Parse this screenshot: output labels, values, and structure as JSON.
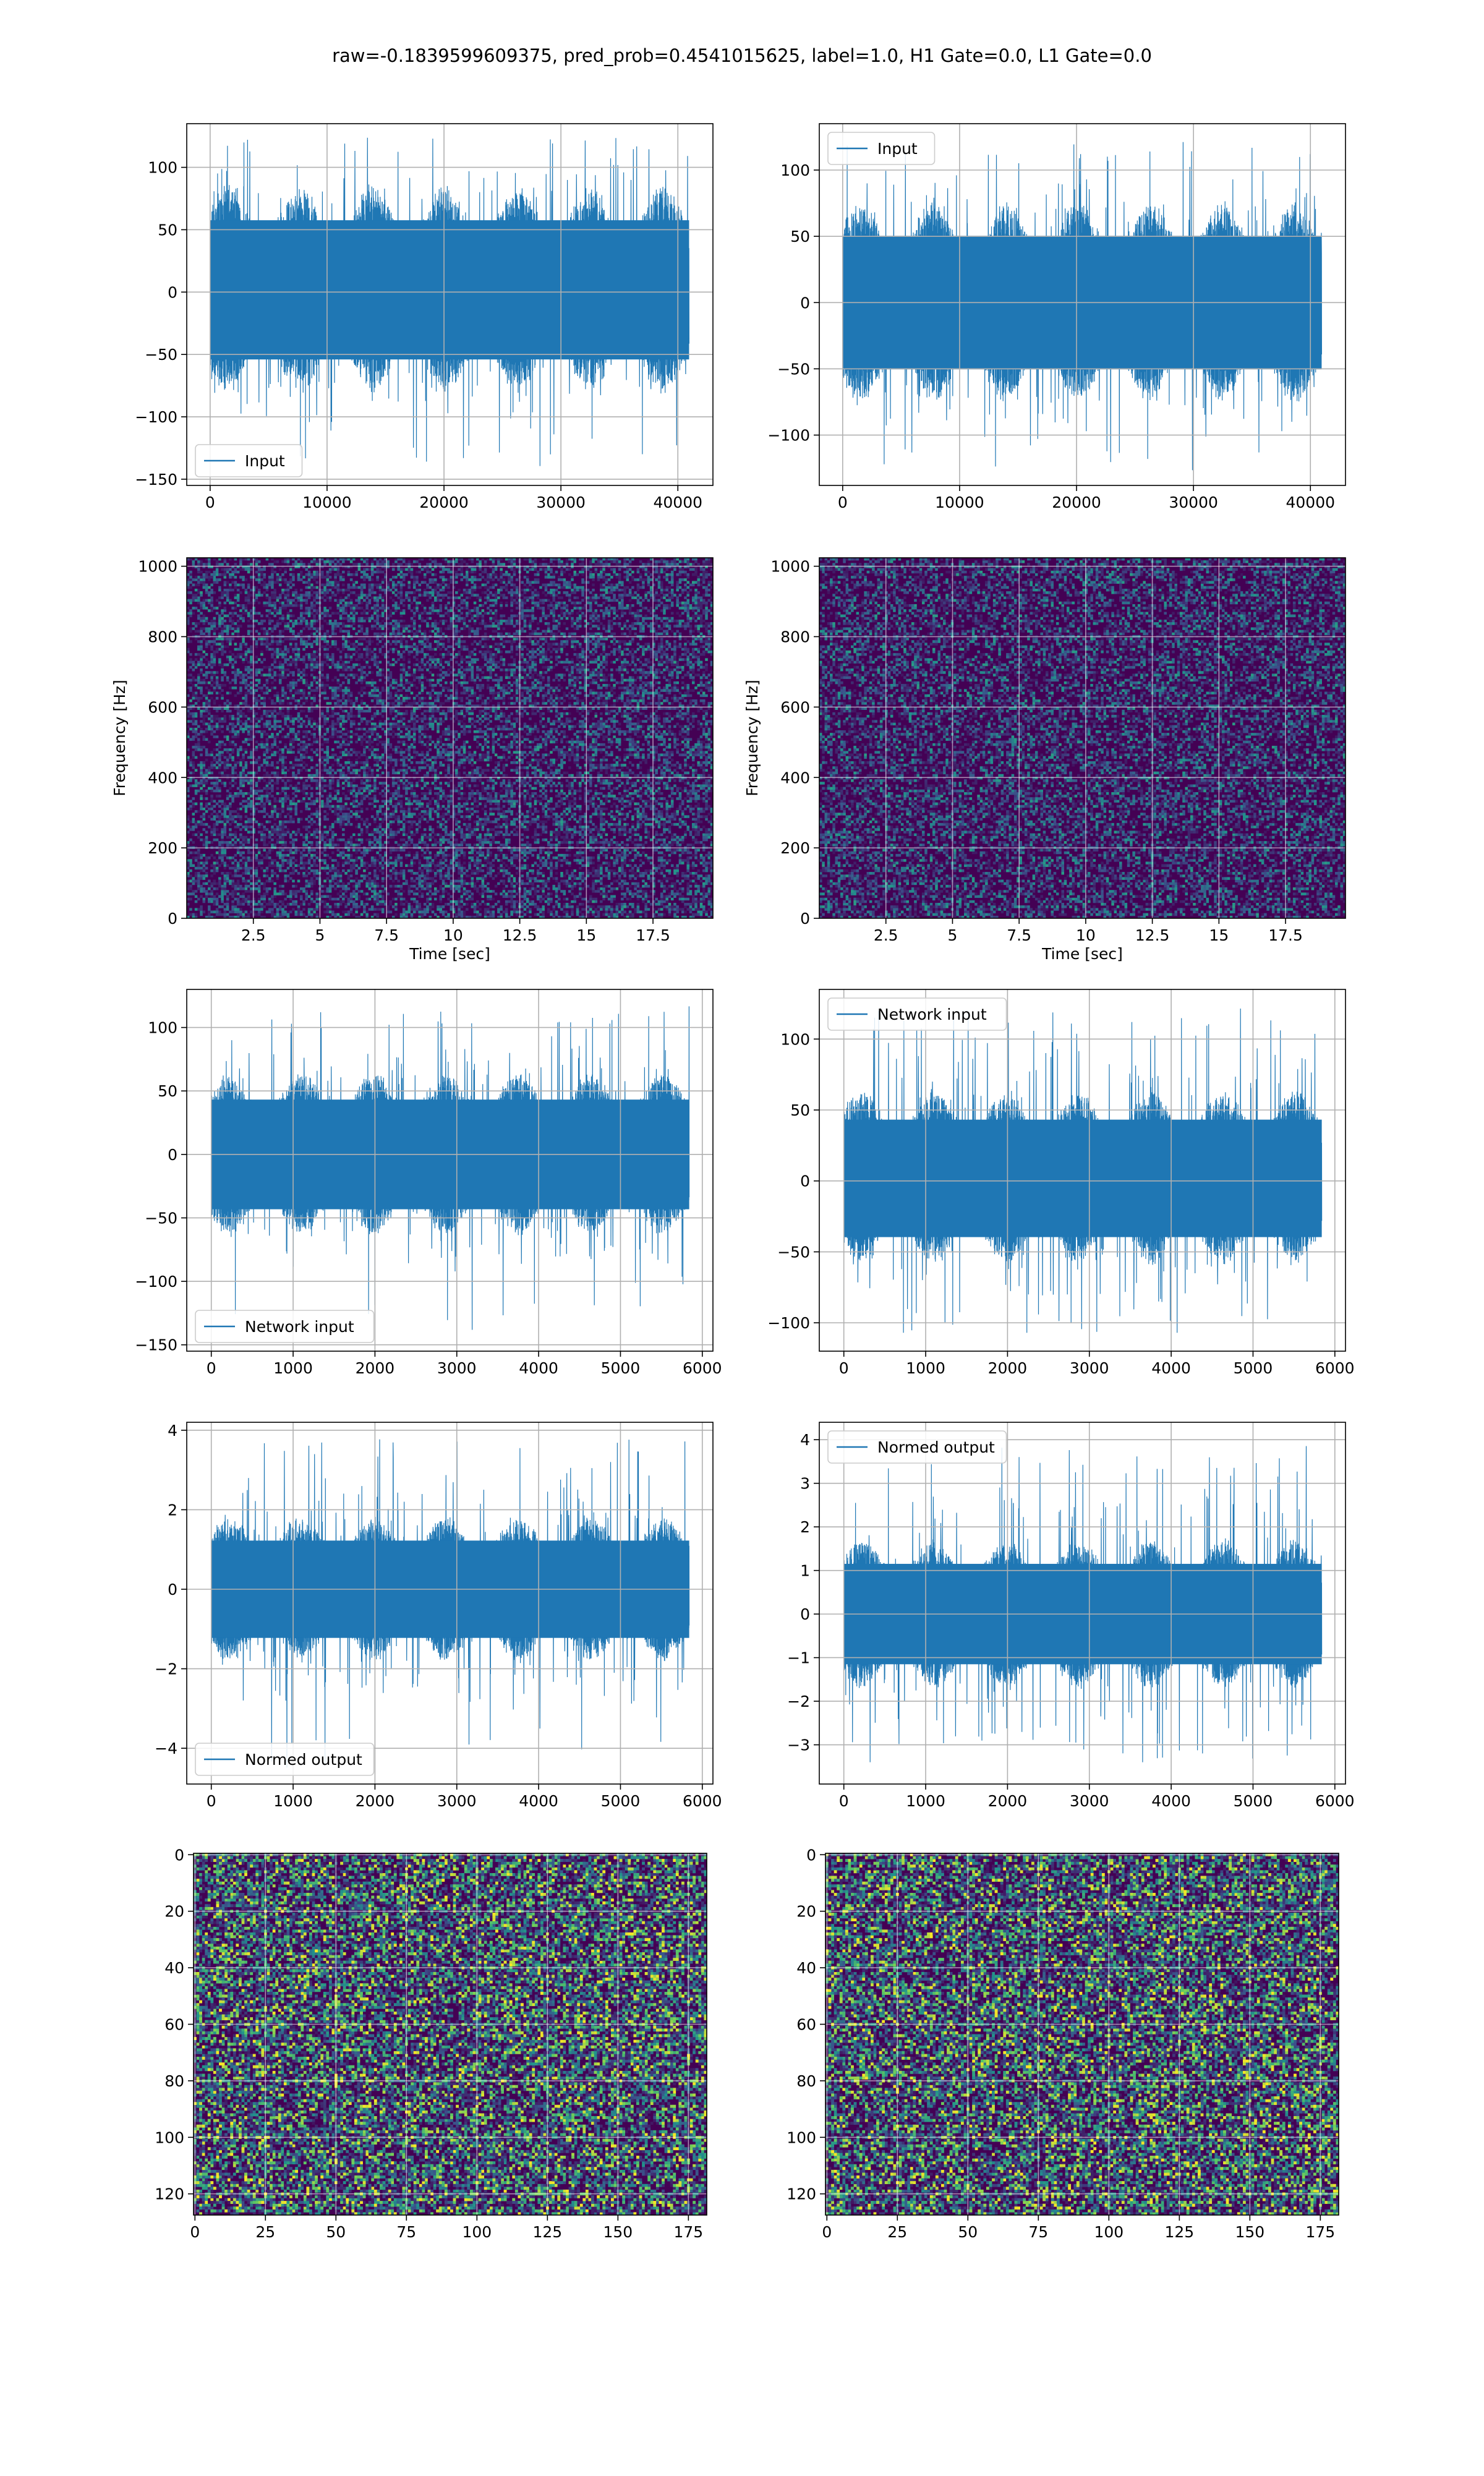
{
  "suptitle": "raw=-0.1839599609375, pred_prob=0.4541015625, label=1.0, H1 Gate=0.0, L1 Gate=0.0",
  "colors": {
    "line": "#1f77b4",
    "grid": "#b0b0b0",
    "viridis_dark": "#440154",
    "viridis_blue": "#31688e",
    "viridis_teal": "#21918c",
    "viridis_green": "#5ec962",
    "viridis_yellow": "#fde725"
  },
  "chart_data": [
    {
      "id": "p1",
      "type": "line",
      "legend": "Input",
      "legend_loc": "lower-left",
      "xlim": [
        -2000,
        43000
      ],
      "ylim": [
        -155,
        135
      ],
      "xticks": [
        0,
        10000,
        20000,
        30000,
        40000
      ],
      "yticks": [
        -150,
        -100,
        -50,
        0,
        50,
        100
      ],
      "x_range": [
        0,
        40960
      ],
      "band": [
        -75,
        80
      ],
      "peak": [
        -140,
        125
      ],
      "grid": true
    },
    {
      "id": "p2",
      "type": "line",
      "legend": "Input",
      "legend_loc": "upper-left",
      "xlim": [
        -2000,
        43000
      ],
      "ylim": [
        -138,
        135
      ],
      "xticks": [
        0,
        10000,
        20000,
        30000,
        40000
      ],
      "yticks": [
        -100,
        -50,
        0,
        50,
        100
      ],
      "x_range": [
        0,
        40960
      ],
      "band": [
        -70,
        70
      ],
      "peak": [
        -127,
        122
      ],
      "grid": true
    },
    {
      "id": "p3",
      "type": "heatmap",
      "xlabel": "Time [sec]",
      "ylabel": "Frequency [Hz]",
      "xlim": [
        0,
        19.75
      ],
      "ylim": [
        0,
        1024
      ],
      "xticks": [
        2.5,
        5.0,
        7.5,
        10.0,
        12.5,
        15.0,
        17.5
      ],
      "yticks": [
        0,
        200,
        400,
        600,
        800,
        1000
      ],
      "grid": true
    },
    {
      "id": "p4",
      "type": "heatmap",
      "xlabel": "Time [sec]",
      "ylabel": "Frequency [Hz]",
      "xlim": [
        0,
        19.75
      ],
      "ylim": [
        0,
        1024
      ],
      "xticks": [
        2.5,
        5.0,
        7.5,
        10.0,
        12.5,
        15.0,
        17.5
      ],
      "yticks": [
        0,
        200,
        400,
        600,
        800,
        1000
      ],
      "grid": true
    },
    {
      "id": "p5",
      "type": "line",
      "legend": "Network input",
      "legend_loc": "lower-left",
      "xlim": [
        -300,
        6130
      ],
      "ylim": [
        -155,
        130
      ],
      "xticks": [
        0,
        1000,
        2000,
        3000,
        4000,
        5000,
        6000
      ],
      "yticks": [
        -150,
        -100,
        -50,
        0,
        50,
        100
      ],
      "x_range": [
        0,
        5840
      ],
      "band": [
        -60,
        60
      ],
      "peak": [
        -140,
        118
      ],
      "grid": true
    },
    {
      "id": "p6",
      "type": "line",
      "legend": "Network input",
      "legend_loc": "upper-left",
      "xlim": [
        -300,
        6130
      ],
      "ylim": [
        -120,
        135
      ],
      "xticks": [
        0,
        1000,
        2000,
        3000,
        4000,
        5000,
        6000
      ],
      "yticks": [
        -100,
        -50,
        0,
        50,
        100
      ],
      "x_range": [
        0,
        5840
      ],
      "band": [
        -55,
        60
      ],
      "peak": [
        -107,
        122
      ],
      "grid": true
    },
    {
      "id": "p7",
      "type": "line",
      "legend": "Normed output",
      "legend_loc": "lower-left",
      "xlim": [
        -300,
        6130
      ],
      "ylim": [
        -4.9,
        4.2
      ],
      "xticks": [
        0,
        1000,
        2000,
        3000,
        4000,
        5000,
        6000
      ],
      "yticks": [
        -4,
        -2,
        0,
        2,
        4
      ],
      "x_range": [
        0,
        5840
      ],
      "band": [
        -1.7,
        1.7
      ],
      "peak": [
        -4.5,
        3.8
      ],
      "grid": true
    },
    {
      "id": "p8",
      "type": "line",
      "legend": "Normed output",
      "legend_loc": "upper-left",
      "xlim": [
        -300,
        6130
      ],
      "ylim": [
        -3.9,
        4.4
      ],
      "xticks": [
        0,
        1000,
        2000,
        3000,
        4000,
        5000,
        6000
      ],
      "yticks": [
        -3,
        -2,
        -1,
        0,
        1,
        2,
        3,
        4
      ],
      "x_range": [
        0,
        5840
      ],
      "band": [
        -1.6,
        1.6
      ],
      "peak": [
        -3.4,
        3.9
      ],
      "grid": true
    },
    {
      "id": "p9",
      "type": "heatmap",
      "image_rows": 128,
      "image_cols": 182,
      "xlim": [
        -0.5,
        181.5
      ],
      "ylim": [
        127.5,
        -0.5
      ],
      "xticks": [
        0,
        25,
        50,
        75,
        100,
        125,
        150,
        175
      ],
      "yticks": [
        0,
        20,
        40,
        60,
        80,
        100,
        120
      ],
      "grid": true
    },
    {
      "id": "p10",
      "type": "heatmap",
      "image_rows": 128,
      "image_cols": 182,
      "xlim": [
        -0.5,
        181.5
      ],
      "ylim": [
        127.5,
        -0.5
      ],
      "xticks": [
        0,
        25,
        50,
        75,
        100,
        125,
        150,
        175
      ],
      "yticks": [
        0,
        20,
        40,
        60,
        80,
        100,
        120
      ],
      "grid": true
    }
  ]
}
